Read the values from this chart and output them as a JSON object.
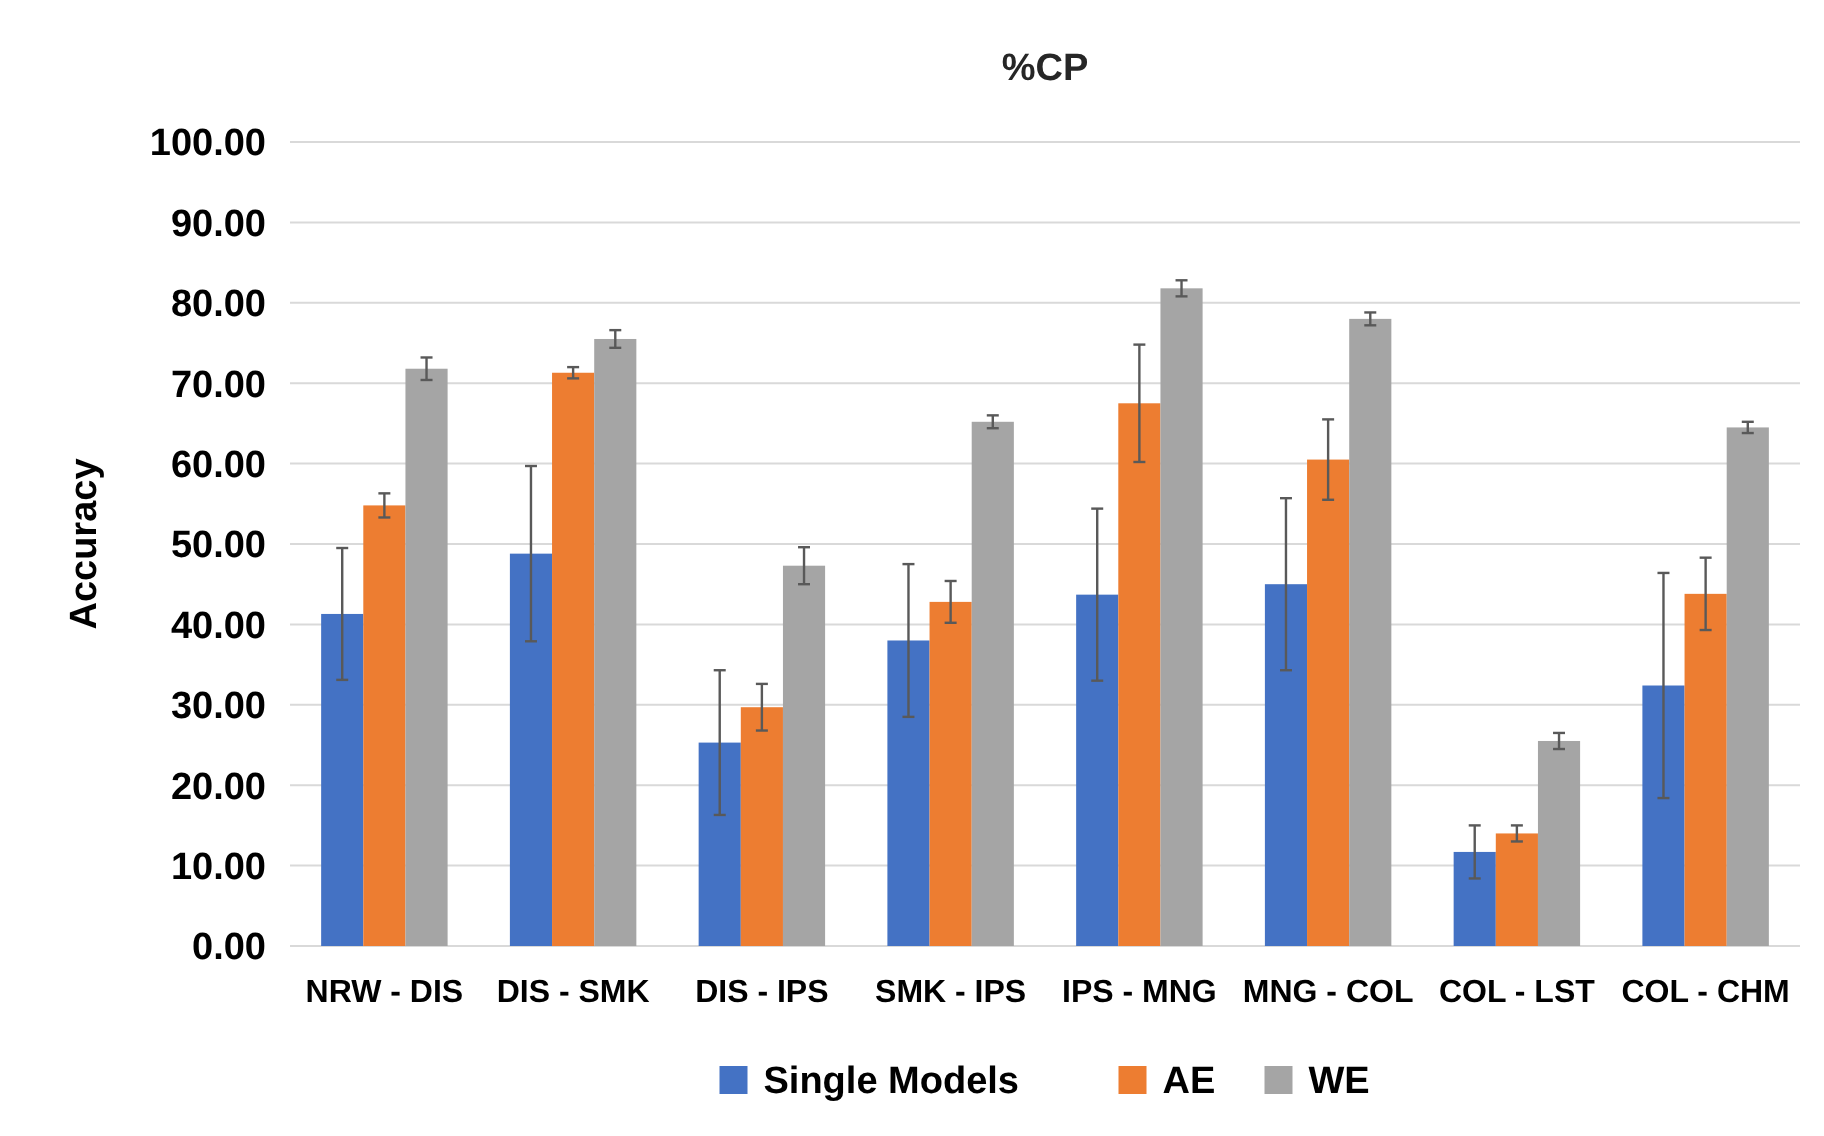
{
  "chart_data": {
    "type": "bar",
    "title": "%CP",
    "ylabel": "Accuracy",
    "categories": [
      "NRW - DIS",
      "DIS - SMK",
      "DIS - IPS",
      "SMK - IPS",
      "IPS - MNG",
      "MNG - COL",
      "COL - LST",
      "COL - CHM"
    ],
    "series": [
      {
        "name": "Single Models",
        "color": "#4472c4",
        "values": [
          41.3,
          48.8,
          25.3,
          38.0,
          43.7,
          45.0,
          11.7,
          32.4
        ],
        "errors": [
          8.2,
          10.9,
          9.0,
          9.5,
          10.7,
          10.7,
          3.3,
          14.0
        ]
      },
      {
        "name": "AE",
        "color": "#ed7d31",
        "values": [
          54.8,
          71.3,
          29.7,
          42.8,
          67.5,
          60.5,
          14.0,
          43.8
        ],
        "errors": [
          1.5,
          0.7,
          2.9,
          2.6,
          7.3,
          5.0,
          1.0,
          4.5
        ]
      },
      {
        "name": "WE",
        "color": "#a5a5a5",
        "values": [
          71.8,
          75.5,
          47.3,
          65.2,
          81.8,
          78.0,
          25.5,
          64.5
        ],
        "errors": [
          1.4,
          1.1,
          2.3,
          0.8,
          1.0,
          0.8,
          1.0,
          0.7
        ]
      }
    ],
    "ylim": [
      0,
      100
    ],
    "yticks": [
      {
        "value": 0,
        "label": "0.00"
      },
      {
        "value": 10,
        "label": "10.00"
      },
      {
        "value": 20,
        "label": "20.00"
      },
      {
        "value": 30,
        "label": "30.00"
      },
      {
        "value": 40,
        "label": "40.00"
      },
      {
        "value": 50,
        "label": "50.00"
      },
      {
        "value": 60,
        "label": "60.00"
      },
      {
        "value": 70,
        "label": "70.00"
      },
      {
        "value": 80,
        "label": "80.00"
      },
      {
        "value": 90,
        "label": "90.00"
      },
      {
        "value": 100,
        "label": "100.00"
      }
    ],
    "grid": "y",
    "legend": "bottom"
  }
}
